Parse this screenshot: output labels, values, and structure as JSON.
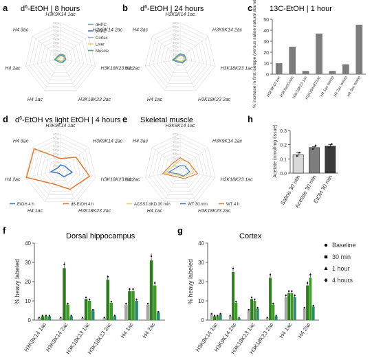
{
  "panels": {
    "a": {
      "letter": "a",
      "title_main": "d",
      "title_sup": "6",
      "title_rest": "-EtOH | 8 hours"
    },
    "b": {
      "letter": "b",
      "title_main": "d",
      "title_sup": "6",
      "title_rest": "-EtOH | 24 hours"
    },
    "c": {
      "letter": "c",
      "title": "13C-EtOH | 1 hour"
    },
    "d": {
      "letter": "d",
      "title_main": "d",
      "title_sup": "6",
      "title_rest": "-EtOH vs light EtOH | 4 hours"
    },
    "e": {
      "letter": "e",
      "title": "Skeletal muscle"
    },
    "f": {
      "letter": "f",
      "title": "Dorsal hippocampus"
    },
    "g": {
      "letter": "g",
      "title": "Cortex"
    },
    "h": {
      "letter": "h"
    }
  },
  "chart_data": [
    {
      "id": "a",
      "type": "radar",
      "axes": [
        "H3K9K14 1ac",
        "H3K9K14 2ac",
        "H3K18K23 1ac",
        "H3K18K23 2ac",
        "H4 1ac",
        "H4 2ac",
        "H4 3ac"
      ],
      "rlim": [
        0,
        90
      ],
      "rings": [
        "90%",
        "80%",
        "70%",
        "60%",
        "50%",
        "40%",
        "30%",
        "20%",
        "10%"
      ],
      "series": [
        {
          "name": "dHPC",
          "color": "#6fa8d6",
          "values": [
            9,
            11,
            12,
            10,
            8,
            14,
            7
          ]
        },
        {
          "name": "vHPC",
          "color": "#4a7fb8",
          "values": [
            8,
            10,
            13,
            11,
            7,
            13,
            6
          ]
        },
        {
          "name": "Cortex",
          "color": "#8fb8dc",
          "values": [
            10,
            12,
            11,
            9,
            9,
            15,
            8
          ]
        },
        {
          "name": "Liver",
          "color": "#e8d27a",
          "values": [
            6,
            8,
            9,
            7,
            6,
            10,
            5
          ]
        },
        {
          "name": "Muscle",
          "color": "#5e9f86",
          "values": [
            11,
            13,
            14,
            12,
            10,
            16,
            9
          ]
        }
      ]
    },
    {
      "id": "b",
      "type": "radar",
      "axes": [
        "H3K9K14 1ac",
        "H3K9K14 2ac",
        "H3K18K23 1ac",
        "H3K18K23 2ac",
        "H4 1ac",
        "H4 2ac",
        "H4 3ac"
      ],
      "rlim": [
        0,
        90
      ],
      "rings": [
        "90%",
        "80%",
        "70%",
        "60%",
        "50%",
        "40%",
        "30%",
        "20%",
        "10%"
      ],
      "series": [
        {
          "name": "dHPC",
          "color": "#6fa8d6",
          "values": [
            10,
            12,
            14,
            11,
            9,
            18,
            8
          ]
        },
        {
          "name": "vHPC",
          "color": "#4a7fb8",
          "values": [
            9,
            11,
            15,
            12,
            8,
            17,
            7
          ]
        },
        {
          "name": "Cortex",
          "color": "#8fb8dc",
          "values": [
            11,
            13,
            13,
            10,
            10,
            19,
            9
          ]
        },
        {
          "name": "Liver",
          "color": "#e8d27a",
          "values": [
            7,
            9,
            10,
            8,
            7,
            12,
            6
          ]
        },
        {
          "name": "Muscle",
          "color": "#5e9f86",
          "values": [
            12,
            14,
            16,
            13,
            11,
            20,
            10
          ]
        }
      ]
    },
    {
      "id": "c",
      "type": "bar",
      "ylabel": "% increase in first isotope (versus saline natural abundance)",
      "ylim": [
        0,
        50
      ],
      "yticks": [
        0,
        10,
        20,
        30,
        40,
        50
      ],
      "categories": [
        "H3K9K14 1ac",
        "H3K9ack14ac",
        "H3K18K23 1ac",
        "H3K18acK23ac",
        "H4 1ac isotop",
        "H4 2ac isotop",
        "H4 3ac isotop"
      ],
      "values": [
        10,
        25,
        3,
        37,
        3,
        9,
        45
      ],
      "color": "#7d7d7d"
    },
    {
      "id": "d",
      "type": "radar",
      "axes": [
        "H3K9K14 1ac",
        "H3K9K14 2ac",
        "H3K18K23 1ac",
        "H3K18K23 2ac",
        "H4 1ac",
        "H4 2ac",
        "H4 3ac"
      ],
      "rlim": [
        0,
        90
      ],
      "rings": [
        "90%",
        "80%",
        "70%",
        "60%",
        "50%",
        "40%",
        "30%",
        "20%",
        "10%"
      ],
      "series": [
        {
          "name": "EtOH 4 h",
          "color": "#4a7fb8",
          "values": [
            12,
            14,
            30,
            20,
            10,
            25,
            8
          ]
        },
        {
          "name": "d6-EtOH 4 h",
          "color": "#e0803a",
          "values": [
            28,
            50,
            75,
            55,
            40,
            88,
            85
          ]
        }
      ]
    },
    {
      "id": "e",
      "type": "radar",
      "axes": [
        "H3K9K14 1ac",
        "H3K9K14 2ac",
        "H3K18K23 1ac",
        "H3K18K23 2ac",
        "H4 1ac",
        "H4 2ac",
        "H4 3ac"
      ],
      "rlim": [
        0,
        90
      ],
      "rings": [
        "90%",
        "80%",
        "70%",
        "60%",
        "50%",
        "40%",
        "30%",
        "20%",
        "10%"
      ],
      "series": [
        {
          "name": "ACSS2 dKD 30 min",
          "color": "#e8d27a",
          "values": [
            25,
            30,
            35,
            20,
            15,
            40,
            18
          ]
        },
        {
          "name": "WT 30 min",
          "color": "#4a7fb8",
          "values": [
            10,
            15,
            25,
            18,
            12,
            30,
            10
          ]
        },
        {
          "name": "WT 4 h",
          "color": "#e0803a",
          "values": [
            30,
            28,
            45,
            25,
            20,
            45,
            25
          ]
        }
      ]
    },
    {
      "id": "h",
      "type": "bar",
      "ylabel": "Acetate (nmol/mg tissue)",
      "ylim": [
        0,
        0.3
      ],
      "yticks": [
        0.0,
        0.1,
        0.2,
        0.3
      ],
      "categories": [
        "Saline 30 min",
        "Acetate 30 min",
        "EtOH 30 min"
      ],
      "values": [
        0.13,
        0.18,
        0.19
      ],
      "errors": [
        0.015,
        0.006,
        0.012
      ],
      "colors": [
        "#d9d9d9",
        "#7d7d7d",
        "#3a3a3a"
      ]
    },
    {
      "id": "f",
      "type": "bar",
      "ylabel": "% heavy labeled",
      "ylim": [
        0,
        40
      ],
      "yticks": [
        0,
        10,
        20,
        30,
        40
      ],
      "categories": [
        "H3K9K14 1ac",
        "H3K9K14 2ac",
        "H3K18K23 1ac",
        "H3K18K23 2ac",
        "H4 1ac",
        "H4 2ac"
      ],
      "series": [
        {
          "name": "Baseline",
          "color": "#a6a6a6",
          "values": [
            1,
            1,
            1,
            1,
            8,
            8
          ]
        },
        {
          "name": "30 min",
          "color": "#2f7d1f",
          "values": [
            2,
            27,
            11,
            21,
            15,
            31
          ]
        },
        {
          "name": "1 hour",
          "color": "#3f9a2a",
          "values": [
            2,
            8,
            10,
            9,
            15,
            18
          ]
        },
        {
          "name": "4 hours",
          "color": "#2c8a6a",
          "values": [
            2,
            2,
            5,
            2,
            10,
            4
          ]
        }
      ]
    },
    {
      "id": "g",
      "type": "bar",
      "ylabel": "% heavy labeled",
      "ylim": [
        0,
        40
      ],
      "yticks": [
        0,
        10,
        20,
        30,
        40
      ],
      "categories": [
        "H3K9K14 1ac",
        "H3K9K14 2ac",
        "H3K18K23 1ac",
        "H3K18K23 2ac",
        "H4 1ac",
        "H4 2ac"
      ],
      "series": [
        {
          "name": "Baseline",
          "color": "#a6a6a6",
          "values": [
            3,
            2,
            5,
            1,
            12,
            6
          ]
        },
        {
          "name": "30 min",
          "color": "#2f7d1f",
          "values": [
            2,
            25,
            11,
            22,
            14,
            18
          ]
        },
        {
          "name": "1 hour",
          "color": "#3f9a2a",
          "values": [
            2,
            9,
            10,
            8,
            14,
            22
          ]
        },
        {
          "name": "4 hours",
          "color": "#2c8a6a",
          "values": [
            3,
            1,
            6,
            2,
            12,
            7
          ]
        }
      ]
    }
  ]
}
